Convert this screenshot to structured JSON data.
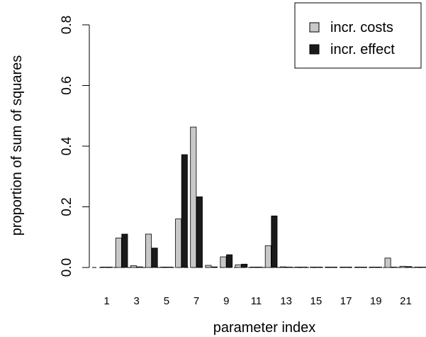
{
  "chart_data": {
    "type": "bar",
    "xlabel": "parameter index",
    "ylabel": "proportion of sum of squares",
    "ylim": [
      0,
      0.8
    ],
    "yticks": [
      "0.0",
      "0.2",
      "0.4",
      "0.6",
      "0.8"
    ],
    "categories": [
      "1",
      "2",
      "3",
      "4",
      "5",
      "6",
      "7",
      "8",
      "9",
      "10",
      "11",
      "12",
      "13",
      "14",
      "15",
      "16",
      "17",
      "18",
      "19",
      "20",
      "21",
      "22"
    ],
    "x_tick_labels": [
      "1",
      "3",
      "5",
      "7",
      "9",
      "11",
      "13",
      "15",
      "17",
      "19",
      "21"
    ],
    "legend_position": "top-right",
    "series": [
      {
        "name": "incr. costs",
        "color": "#c8c8c8",
        "values": [
          0.0,
          0.097,
          0.006,
          0.11,
          0.0,
          0.16,
          0.463,
          0.007,
          0.035,
          0.009,
          0.0,
          0.072,
          0.002,
          0.001,
          0.0,
          0.0,
          0.0,
          0.0,
          0.0,
          0.031,
          0.004,
          0.0
        ]
      },
      {
        "name": "incr. effect",
        "color": "#1a1a1a",
        "values": [
          0.0,
          0.11,
          0.002,
          0.064,
          0.0,
          0.372,
          0.233,
          0.002,
          0.042,
          0.011,
          0.0,
          0.17,
          0.001,
          0.0,
          0.0,
          0.0,
          0.0,
          0.0,
          0.0,
          0.001,
          0.003,
          0.0
        ]
      }
    ]
  }
}
